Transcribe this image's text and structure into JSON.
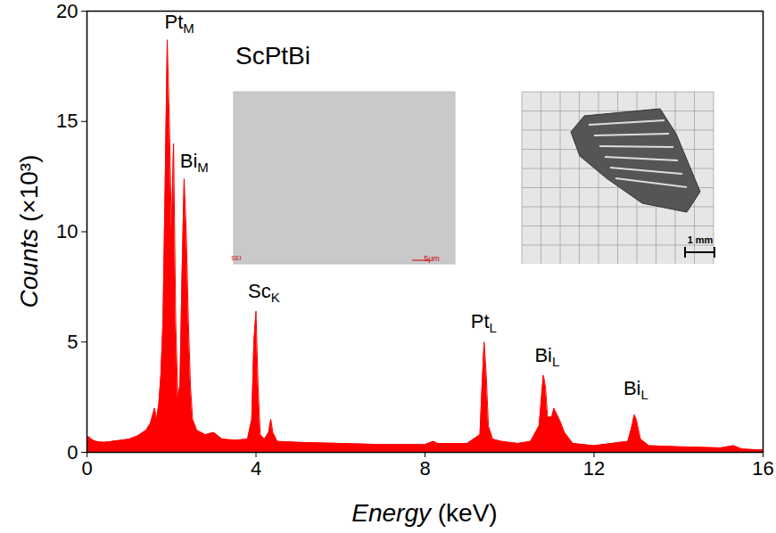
{
  "chart_data": {
    "type": "area",
    "title": "ScPtBi",
    "xlabel": "Energy (keV)",
    "ylabel": "Counts (×10³)",
    "color": "#ff0000",
    "xlim": [
      0,
      16
    ],
    "xticks": [
      0,
      4,
      8,
      12,
      16
    ],
    "ylim": [
      0,
      20
    ],
    "yticks": [
      0,
      5,
      10,
      15,
      20
    ],
    "x": [
      0,
      0.05,
      0.1,
      0.2,
      0.4,
      0.6,
      0.8,
      1.0,
      1.2,
      1.4,
      1.5,
      1.6,
      1.65,
      1.7,
      1.75,
      1.8,
      1.85,
      1.9,
      1.95,
      2.0,
      2.05,
      2.1,
      2.15,
      2.2,
      2.25,
      2.3,
      2.35,
      2.4,
      2.45,
      2.5,
      2.6,
      2.8,
      3.0,
      3.2,
      3.5,
      3.8,
      3.9,
      3.95,
      4.0,
      4.05,
      4.1,
      4.2,
      4.3,
      4.35,
      4.4,
      4.5,
      5,
      6,
      7,
      8,
      8.2,
      8.3,
      9,
      9.3,
      9.35,
      9.4,
      9.45,
      9.5,
      9.6,
      9.8,
      10.2,
      10.5,
      10.7,
      10.8,
      10.85,
      10.9,
      11.0,
      11.05,
      11.1,
      11.2,
      11.3,
      11.5,
      12,
      12.8,
      12.9,
      12.95,
      13.0,
      13.1,
      13.3,
      14,
      15,
      15.3,
      15.5,
      16
    ],
    "values": [
      0.7,
      0.7,
      0.6,
      0.5,
      0.45,
      0.5,
      0.55,
      0.6,
      0.75,
      1.0,
      1.3,
      2.0,
      1.5,
      2.2,
      3.5,
      6,
      12,
      18.7,
      15,
      10,
      14,
      6,
      2.5,
      3.0,
      8,
      12.4,
      10,
      6,
      3,
      1.5,
      1.0,
      0.8,
      0.9,
      0.6,
      0.55,
      0.6,
      1.5,
      5,
      6.4,
      3,
      0.8,
      0.6,
      0.9,
      1.5,
      0.9,
      0.5,
      0.45,
      0.4,
      0.35,
      0.35,
      0.5,
      0.4,
      0.4,
      0.8,
      3,
      5.0,
      3.5,
      1.2,
      0.6,
      0.5,
      0.4,
      0.5,
      1.2,
      3.5,
      3.0,
      1.6,
      1.6,
      2.0,
      1.8,
      1.4,
      0.9,
      0.4,
      0.3,
      0.5,
      1.2,
      1.7,
      1.5,
      0.6,
      0.3,
      0.25,
      0.2,
      0.3,
      0.15,
      0.1
    ],
    "annotations": [
      {
        "text": "Pt",
        "subscript": "M",
        "x": 2.2,
        "y": 19.2
      },
      {
        "text": "Bi",
        "subscript": "M",
        "x": 2.55,
        "y": 12.9
      },
      {
        "text": "Sc",
        "subscript": "K",
        "x": 4.2,
        "y": 7.0
      },
      {
        "text": "Pt",
        "subscript": "L",
        "x": 9.4,
        "y": 5.6
      },
      {
        "text": "Bi",
        "subscript": "L",
        "x": 10.9,
        "y": 4.1
      },
      {
        "text": "Bi",
        "subscript": "L",
        "x": 13.0,
        "y": 2.6
      }
    ],
    "insets": [
      {
        "label": "SEI",
        "scale_bar": "5μm"
      },
      {
        "scale_bar": "1 mm"
      }
    ]
  }
}
